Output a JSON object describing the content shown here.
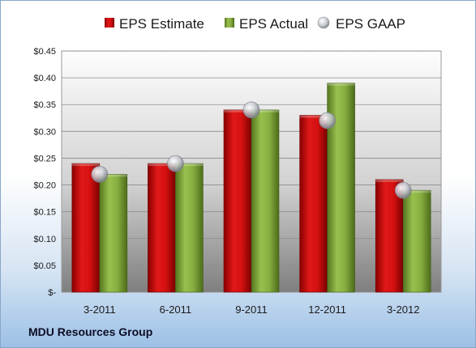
{
  "company_name": "MDU Resources Group",
  "chart_data": {
    "type": "bar",
    "title": "",
    "xlabel": "",
    "ylabel": "",
    "categories": [
      "3-2011",
      "6-2011",
      "9-2011",
      "12-2011",
      "3-2012"
    ],
    "series": [
      {
        "name": "EPS Estimate",
        "kind": "bar",
        "color": "#c00000",
        "values": [
          0.24,
          0.24,
          0.34,
          0.33,
          0.21
        ]
      },
      {
        "name": "EPS Actual",
        "kind": "bar",
        "color": "#7aa33a",
        "values": [
          0.22,
          0.24,
          0.34,
          0.39,
          0.19
        ]
      },
      {
        "name": "EPS GAAP",
        "kind": "marker",
        "color": "#b8bcc4",
        "values": [
          0.22,
          0.24,
          0.34,
          0.32,
          0.19
        ]
      }
    ],
    "ylim": [
      0,
      0.45
    ],
    "yticks": [
      0,
      0.05,
      0.1,
      0.15,
      0.2,
      0.25,
      0.3,
      0.35,
      0.4,
      0.45
    ],
    "ytick_labels": [
      "$-",
      "$0.05",
      "$0.10",
      "$0.15",
      "$0.20",
      "$0.25",
      "$0.30",
      "$0.35",
      "$0.40",
      "$0.45"
    ],
    "grid": true,
    "legend_position": "top"
  }
}
